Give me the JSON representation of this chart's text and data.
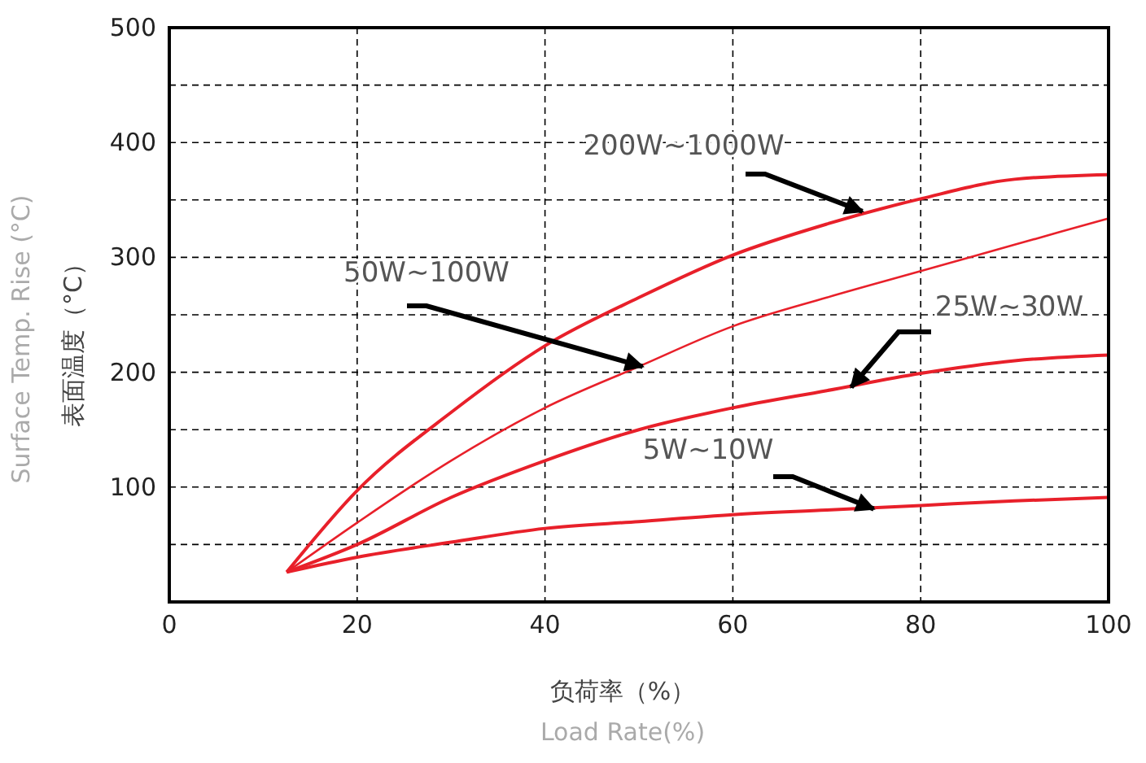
{
  "chart_data": {
    "type": "line",
    "xlabel": "负荷率（%）\nLoad Rate(%)",
    "ylabel": "表面温度（°C）\nSurface Temp. Rise (°C)",
    "x": [
      12.5,
      20,
      30,
      40,
      50,
      60,
      70,
      80,
      90,
      100
    ],
    "series": [
      {
        "color": "#e8202a",
        "values": [
          26,
          97,
          165,
          223,
          265,
          302,
          329,
          351,
          368,
          372
        ]
      },
      {
        "color": "#e8202a",
        "values": [
          26,
          69,
          123,
          169,
          205,
          240,
          265,
          288,
          311,
          334
        ]
      },
      {
        "color": "#e8202a",
        "values": [
          26,
          50,
          91,
          123,
          150,
          169,
          184,
          199,
          210,
          215
        ]
      },
      {
        "color": "#e8202a",
        "values": [
          26,
          39,
          52,
          64,
          70,
          76,
          80,
          84,
          88,
          91
        ]
      }
    ],
    "annotations": [
      {
        "text": "200W~1000W",
        "x": 73.8,
        "y": 340
      },
      {
        "text": "50W~100W",
        "x": 50.4,
        "y": 205
      },
      {
        "text": "25W~30W",
        "x": 72.6,
        "y": 187
      },
      {
        "text": "5W~10W",
        "x": 75,
        "y": 81
      }
    ],
    "xlim": [
      0,
      100
    ],
    "ylim": [
      0,
      500
    ],
    "xticks": [
      0,
      20,
      40,
      60,
      80,
      100
    ],
    "yticks": [
      {
        "value": 50,
        "label": null
      },
      100,
      {
        "value": 150,
        "label": null
      },
      200,
      {
        "value": 250,
        "label": null
      },
      300,
      {
        "value": 350,
        "label": null
      },
      400,
      {
        "value": 450,
        "label": null
      },
      500
    ],
    "grid": true,
    "marker": "none",
    "line_style": "solid"
  }
}
